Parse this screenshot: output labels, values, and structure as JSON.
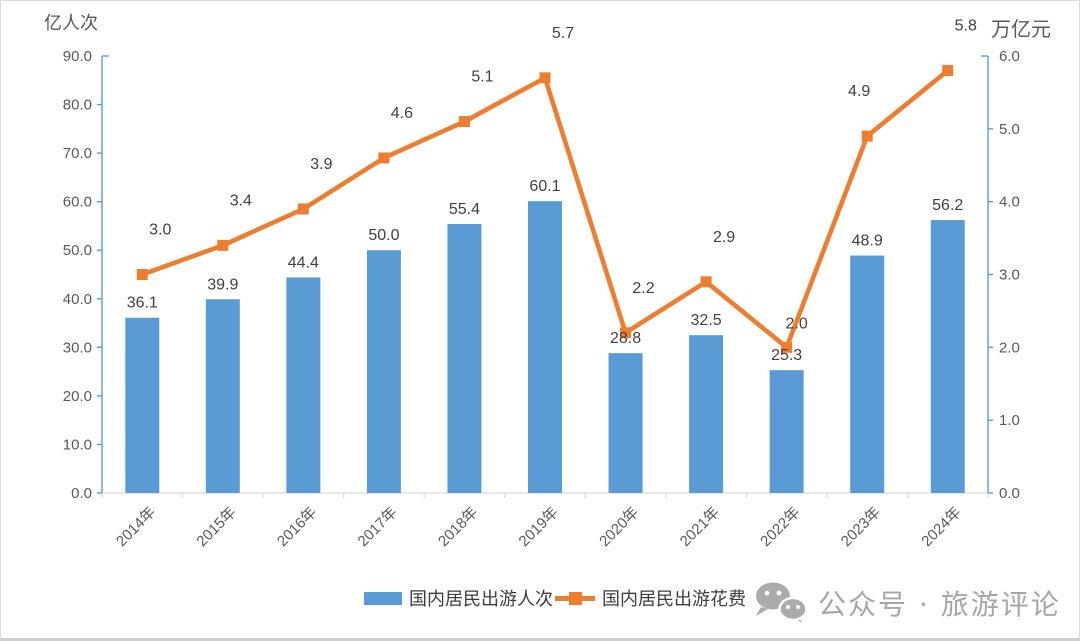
{
  "chart_data": {
    "type": "combo-bar-line",
    "categories": [
      "2014年",
      "2015年",
      "2016年",
      "2017年",
      "2018年",
      "2019年",
      "2020年",
      "2021年",
      "2022年",
      "2023年",
      "2024年"
    ],
    "series": [
      {
        "name": "国内居民出游人次",
        "type": "bar",
        "axis": "left",
        "values": [
          36.1,
          39.9,
          44.4,
          50.0,
          55.4,
          60.1,
          28.8,
          32.5,
          25.3,
          48.9,
          56.2
        ]
      },
      {
        "name": "国内居民出游花费",
        "type": "line",
        "axis": "right",
        "values": [
          3.0,
          3.4,
          3.9,
          4.6,
          5.1,
          5.7,
          2.2,
          2.9,
          2.0,
          4.9,
          5.8
        ]
      }
    ],
    "left_axis": {
      "title": "亿人次",
      "min": 0,
      "max": 90,
      "step": 10,
      "decimals": 1
    },
    "right_axis": {
      "title": "万亿元",
      "min": 0,
      "max": 6,
      "step": 1,
      "decimals": 1
    },
    "grid": false,
    "legend_position": "bottom",
    "label_offsets_line": {
      "8": {
        "dx": 10,
        "dy": -19
      },
      "9": {
        "dx": -8
      }
    }
  },
  "colors": {
    "bar": "#5B9BD5",
    "line": "#ED7D31",
    "data_label": "#404040",
    "tick_label": "#595959",
    "x_axis_line": "#D9D9D9",
    "watermark": "#ABABAB"
  },
  "watermark": {
    "icon": "wechat-icon",
    "text": "公众号 · 旅游评论"
  }
}
